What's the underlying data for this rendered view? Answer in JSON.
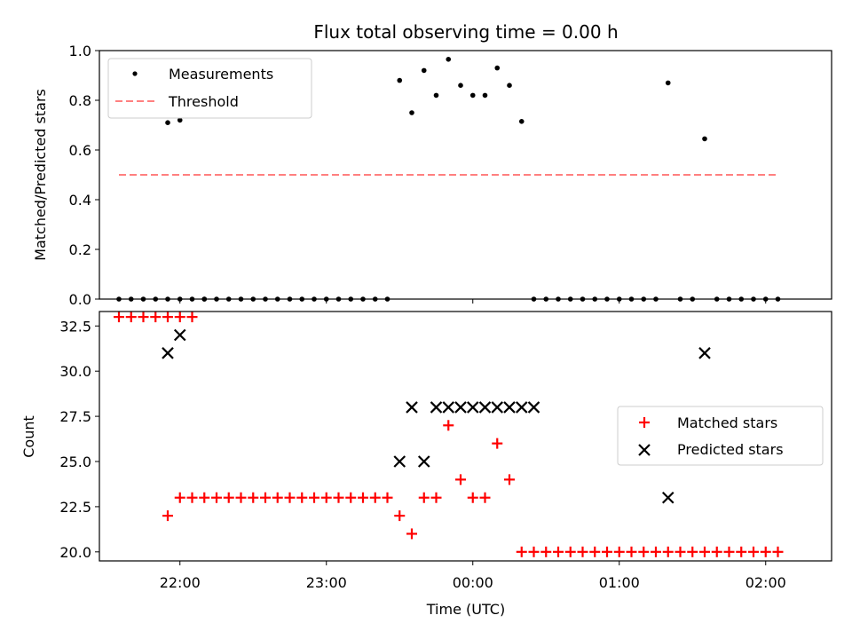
{
  "chart_data": [
    {
      "type": "scatter",
      "title": "Flux total observing time = 0.00 h",
      "xlabel": "",
      "ylabel": "Matched/Predicted stars",
      "ylim": [
        0.0,
        1.0
      ],
      "yticks": [
        "0.0",
        "0.2",
        "0.4",
        "0.6",
        "0.8",
        "1.0"
      ],
      "xlim": [
        "21:27",
        "02:27"
      ],
      "legend_position": "upper-left",
      "series": [
        {
          "name": "Measurements",
          "marker": "dot",
          "color": "#000000",
          "x": [
            "21:35",
            "21:40",
            "21:45",
            "21:50",
            "21:55",
            "22:00",
            "22:05",
            "22:10",
            "21:55",
            "22:00",
            "22:10",
            "22:15",
            "22:20",
            "22:25",
            "22:30",
            "22:35",
            "22:40",
            "22:45",
            "22:50",
            "22:55",
            "23:00",
            "23:05",
            "23:10",
            "23:15",
            "23:20",
            "23:25",
            "23:30",
            "23:35",
            "23:40",
            "23:45",
            "23:50",
            "23:55",
            "00:00",
            "00:05",
            "00:10",
            "00:15",
            "00:20",
            "00:25",
            "00:30",
            "00:35",
            "00:40",
            "00:45",
            "00:50",
            "00:55",
            "01:00",
            "01:05",
            "01:10",
            "01:15",
            "01:20",
            "01:25",
            "01:30",
            "01:35",
            "01:40",
            "01:45",
            "01:50",
            "01:55",
            "02:00",
            "02:05"
          ],
          "values": [
            0,
            0,
            0,
            0,
            0,
            0,
            0,
            0,
            0.71,
            0.72,
            0,
            0,
            0,
            0,
            0,
            0,
            0,
            0,
            0,
            0,
            0,
            0,
            0,
            0,
            0,
            0,
            0.88,
            0.75,
            0.92,
            0.82,
            0.965,
            0.86,
            0.82,
            0.82,
            0.93,
            0.86,
            0.715,
            0,
            0,
            0,
            0,
            0,
            0,
            0,
            0,
            0,
            0,
            0,
            0.87,
            0,
            0,
            0.645,
            0,
            0,
            0,
            0,
            0,
            0
          ]
        },
        {
          "name": "Threshold",
          "style": "dashed",
          "color": "#ff8080",
          "x": [
            "21:35",
            "02:05"
          ],
          "values": [
            0.5,
            0.5
          ]
        }
      ]
    },
    {
      "type": "scatter",
      "title": "",
      "xlabel": "Time (UTC)",
      "ylabel": "Count",
      "ylim": [
        19.5,
        33.3
      ],
      "yticks": [
        "20.0",
        "22.5",
        "25.0",
        "27.5",
        "30.0",
        "32.5"
      ],
      "xlim": [
        "21:27",
        "02:27"
      ],
      "xticks": [
        "22:00",
        "23:00",
        "00:00",
        "01:00",
        "02:00"
      ],
      "legend_position": "right",
      "series": [
        {
          "name": "Matched stars",
          "marker": "plus",
          "color": "#ff0000",
          "x": [
            "21:35",
            "21:40",
            "21:45",
            "21:50",
            "21:55",
            "22:00",
            "22:05",
            "21:55",
            "22:00",
            "22:05",
            "22:10",
            "22:15",
            "22:20",
            "22:25",
            "22:30",
            "22:35",
            "22:40",
            "22:45",
            "22:50",
            "22:55",
            "23:00",
            "23:05",
            "23:10",
            "23:15",
            "23:20",
            "23:25",
            "23:30",
            "23:35",
            "23:40",
            "23:45",
            "23:50",
            "23:55",
            "00:00",
            "00:05",
            "00:10",
            "00:15",
            "00:20",
            "00:25",
            "00:30",
            "00:35",
            "00:40",
            "00:45",
            "00:50",
            "00:55",
            "01:00",
            "01:05",
            "01:10",
            "01:15",
            "01:20",
            "01:25",
            "01:30",
            "01:35",
            "01:40",
            "01:45",
            "01:50",
            "01:55",
            "02:00",
            "02:05"
          ],
          "values": [
            33,
            33,
            33,
            33,
            33,
            33,
            33,
            22,
            23,
            23,
            23,
            23,
            23,
            23,
            23,
            23,
            23,
            23,
            23,
            23,
            23,
            23,
            23,
            23,
            23,
            23,
            22,
            21,
            23,
            23,
            27,
            24,
            23,
            23,
            26,
            24,
            20,
            20,
            20,
            20,
            20,
            20,
            20,
            20,
            20,
            20,
            20,
            20,
            20,
            20,
            20,
            20,
            20,
            20,
            20,
            20,
            20,
            20
          ]
        },
        {
          "name": "Predicted stars",
          "marker": "x",
          "color": "#000000",
          "x": [
            "21:55",
            "22:00",
            "23:30",
            "23:35",
            "23:40",
            "23:45",
            "23:50",
            "23:55",
            "00:00",
            "00:05",
            "00:10",
            "00:15",
            "00:20",
            "00:25",
            "01:20",
            "01:35"
          ],
          "values": [
            31,
            32,
            25,
            28,
            25,
            28,
            28,
            28,
            28,
            28,
            28,
            28,
            28,
            28,
            23,
            31
          ]
        }
      ]
    }
  ]
}
